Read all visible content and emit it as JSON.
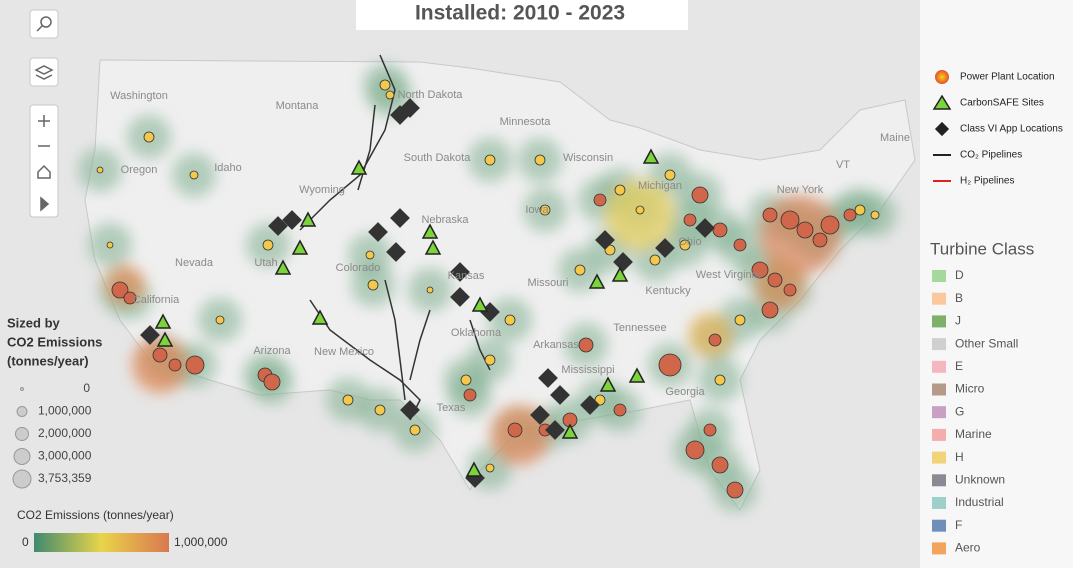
{
  "title": "Installed: 2010 - 2023",
  "map_labels": [
    "Washington",
    "Montana",
    "North Dakota",
    "Minnesota",
    "Oregon",
    "Idaho",
    "Wyoming",
    "South Dakota",
    "Wisconsin",
    "Michigan",
    "New York",
    "Maine",
    "VT",
    "Nevada",
    "Utah",
    "Colorado",
    "Nebraska",
    "Iowa",
    "Ohio",
    "Kansas",
    "Missouri",
    "Kentucky",
    "West Virginia",
    "California",
    "Arizona",
    "New Mexico",
    "Oklahoma",
    "Arkansas",
    "Tennessee",
    "Mississippi",
    "Texas",
    "Georgia"
  ],
  "legend": {
    "items": [
      "Power Plant Location",
      "CarbonSAFE Sites",
      "Class VI App Locations",
      "CO₂ Pipelines",
      "H₂ Pipelines"
    ]
  },
  "turbine_class": {
    "title": "Turbine Class",
    "items": [
      {
        "label": "D",
        "color": "#a5d89b"
      },
      {
        "label": "B",
        "color": "#fbc89b"
      },
      {
        "label": "J",
        "color": "#7fb06b"
      },
      {
        "label": "Other Small",
        "color": "#cfcfcf"
      },
      {
        "label": "E",
        "color": "#f6b6c0"
      },
      {
        "label": "Micro",
        "color": "#b59a8a"
      },
      {
        "label": "G",
        "color": "#c7a0c2"
      },
      {
        "label": "Marine",
        "color": "#f4adad"
      },
      {
        "label": "H",
        "color": "#f1d47a"
      },
      {
        "label": "Unknown",
        "color": "#8a8a95"
      },
      {
        "label": "Industrial",
        "color": "#9fcfca"
      },
      {
        "label": "F",
        "color": "#6f8fb8"
      },
      {
        "label": "Aero",
        "color": "#f2a35c"
      }
    ]
  },
  "size_legend": {
    "title": [
      "Sized by",
      "CO2 Emissions",
      "(tonnes/year)"
    ],
    "labels": [
      "0",
      "1,000,000",
      "2,000,000",
      "3,000,000",
      "3,753,359"
    ]
  },
  "color_legend": {
    "title": "CO2 Emissions (tonnes/year)",
    "min": "0",
    "max": "1,000,000"
  }
}
